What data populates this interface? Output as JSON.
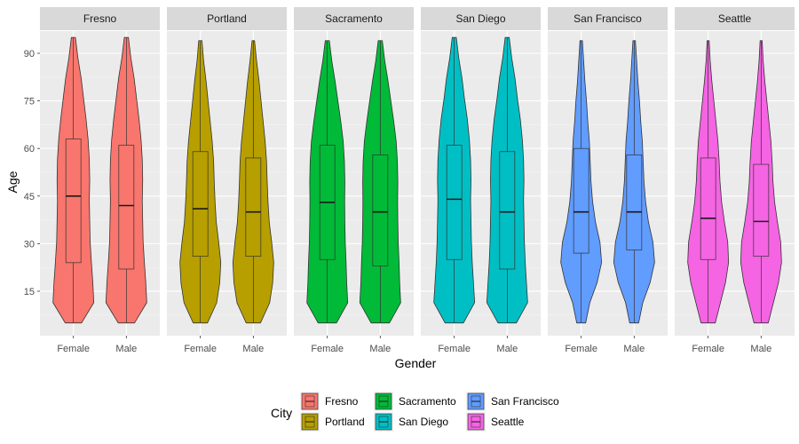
{
  "chart_data": {
    "type": "violin",
    "xlabel": "Gender",
    "ylabel": "Age",
    "ylim": [
      1,
      97
    ],
    "yticks": [
      15,
      30,
      45,
      60,
      75,
      90
    ],
    "categories": [
      "Female",
      "Male"
    ],
    "grid": true,
    "legend": {
      "title": "City",
      "position": "bottom",
      "entries": [
        {
          "label": "Fresno",
          "color": "#F8766D"
        },
        {
          "label": "Portland",
          "color": "#B79F00"
        },
        {
          "label": "Sacramento",
          "color": "#00BA38"
        },
        {
          "label": "San Diego",
          "color": "#00BFC4"
        },
        {
          "label": "San Francisco",
          "color": "#619CFF"
        },
        {
          "label": "Seattle",
          "color": "#F564E3"
        }
      ]
    },
    "panels": [
      {
        "name": "Fresno",
        "color": "#F8766D",
        "groups": [
          {
            "gender": "Female",
            "min": 5,
            "q1": 24,
            "median": 45,
            "q3": 63,
            "max": 95,
            "density": [
              0.4,
              1.0,
              0.95,
              0.88,
              0.82,
              0.8,
              0.78,
              0.8,
              0.78,
              0.72,
              0.62,
              0.5,
              0.38,
              0.22,
              0.1
            ]
          },
          {
            "gender": "Male",
            "min": 5,
            "q1": 22,
            "median": 42,
            "q3": 61,
            "max": 95,
            "density": [
              0.4,
              1.0,
              0.95,
              0.88,
              0.82,
              0.8,
              0.78,
              0.8,
              0.78,
              0.72,
              0.62,
              0.5,
              0.38,
              0.22,
              0.1
            ]
          }
        ]
      },
      {
        "name": "Portland",
        "color": "#B79F00",
        "groups": [
          {
            "gender": "Female",
            "min": 5,
            "q1": 26,
            "median": 41,
            "q3": 59,
            "max": 94,
            "density": [
              0.35,
              0.8,
              0.95,
              1.0,
              0.9,
              0.78,
              0.72,
              0.68,
              0.65,
              0.58,
              0.48,
              0.38,
              0.28,
              0.16,
              0.08
            ]
          },
          {
            "gender": "Male",
            "min": 5,
            "q1": 26,
            "median": 40,
            "q3": 57,
            "max": 94,
            "density": [
              0.35,
              0.8,
              0.95,
              1.0,
              0.9,
              0.78,
              0.72,
              0.68,
              0.65,
              0.58,
              0.48,
              0.38,
              0.28,
              0.16,
              0.06
            ]
          }
        ]
      },
      {
        "name": "Sacramento",
        "color": "#00BA38",
        "groups": [
          {
            "gender": "Female",
            "min": 5,
            "q1": 25,
            "median": 43,
            "q3": 61,
            "max": 94,
            "density": [
              0.45,
              1.0,
              0.95,
              0.92,
              0.88,
              0.86,
              0.85,
              0.86,
              0.84,
              0.78,
              0.66,
              0.52,
              0.38,
              0.22,
              0.1
            ]
          },
          {
            "gender": "Male",
            "min": 5,
            "q1": 23,
            "median": 40,
            "q3": 58,
            "max": 94,
            "density": [
              0.45,
              1.0,
              0.95,
              0.92,
              0.88,
              0.86,
              0.85,
              0.86,
              0.84,
              0.78,
              0.66,
              0.52,
              0.38,
              0.22,
              0.1
            ]
          }
        ]
      },
      {
        "name": "San Diego",
        "color": "#00BFC4",
        "groups": [
          {
            "gender": "Female",
            "min": 5,
            "q1": 25,
            "median": 44,
            "q3": 61,
            "max": 95,
            "density": [
              0.45,
              1.0,
              0.94,
              0.88,
              0.84,
              0.82,
              0.8,
              0.82,
              0.8,
              0.74,
              0.64,
              0.5,
              0.38,
              0.22,
              0.1
            ]
          },
          {
            "gender": "Male",
            "min": 5,
            "q1": 22,
            "median": 40,
            "q3": 59,
            "max": 95,
            "density": [
              0.45,
              1.0,
              0.94,
              0.88,
              0.84,
              0.82,
              0.8,
              0.82,
              0.8,
              0.74,
              0.64,
              0.5,
              0.38,
              0.22,
              0.1
            ]
          }
        ]
      },
      {
        "name": "San Francisco",
        "color": "#619CFF",
        "groups": [
          {
            "gender": "Female",
            "min": 5,
            "q1": 27,
            "median": 40,
            "q3": 60,
            "max": 94,
            "density": [
              0.22,
              0.42,
              0.78,
              1.0,
              0.92,
              0.7,
              0.56,
              0.48,
              0.44,
              0.4,
              0.32,
              0.26,
              0.18,
              0.12,
              0.06
            ]
          },
          {
            "gender": "Male",
            "min": 5,
            "q1": 28,
            "median": 40,
            "q3": 58,
            "max": 94,
            "density": [
              0.22,
              0.42,
              0.78,
              1.0,
              0.92,
              0.7,
              0.56,
              0.48,
              0.44,
              0.4,
              0.32,
              0.26,
              0.18,
              0.12,
              0.06
            ]
          }
        ]
      },
      {
        "name": "Seattle",
        "color": "#F564E3",
        "groups": [
          {
            "gender": "Female",
            "min": 5,
            "q1": 25,
            "median": 38,
            "q3": 57,
            "max": 94,
            "density": [
              0.35,
              0.6,
              0.85,
              1.0,
              0.96,
              0.8,
              0.66,
              0.58,
              0.54,
              0.48,
              0.38,
              0.28,
              0.18,
              0.1,
              0.05
            ]
          },
          {
            "gender": "Male",
            "min": 5,
            "q1": 26,
            "median": 37,
            "q3": 55,
            "max": 94,
            "density": [
              0.35,
              0.6,
              0.85,
              1.0,
              0.96,
              0.8,
              0.66,
              0.58,
              0.54,
              0.48,
              0.38,
              0.28,
              0.18,
              0.1,
              0.05
            ]
          }
        ]
      }
    ]
  }
}
